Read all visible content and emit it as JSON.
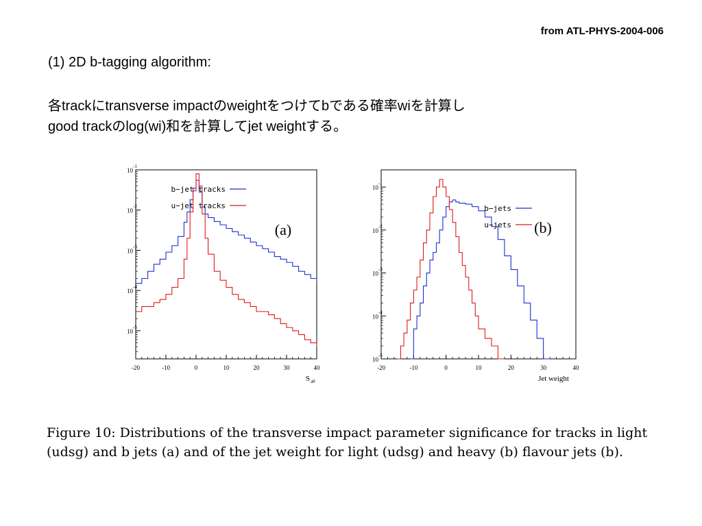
{
  "slide": {
    "source": "from ATL-PHYS-2004-006",
    "heading": "(1) 2D b-tagging algorithm:",
    "body_line1": "各trackにtransverse impactのweightをつけてbである確率wiを計算し",
    "body_line2": "good trackのlog(wi)和を計算してjet weightする。",
    "caption_line1": "Figure 10: Distributions of the transverse impact parameter significance for tracks in light",
    "caption_line2": "(udsg) and b jets (a) and of the jet weight for light (udsg) and heavy (b) flavour jets (b)."
  },
  "colors": {
    "b": "#1a2fd0",
    "u": "#e01818",
    "axis": "#000000"
  },
  "chart_data": [
    {
      "type": "line",
      "panel_label": "(a)",
      "xlabel": "S",
      "xlabel_sub": "a0",
      "ylabel": "",
      "xlim": [
        -20,
        40
      ],
      "ylim_log10": [
        -5.7,
        -1
      ],
      "xticks": [
        -20,
        -10,
        0,
        10,
        20,
        30,
        40
      ],
      "yticks_log10": [
        -1,
        -2,
        -3,
        -4,
        -5
      ],
      "legend": "top-right",
      "series": [
        {
          "name": "b−jet tracks",
          "color_key": "b",
          "x": [
            -20,
            -18,
            -16,
            -14,
            -12,
            -10,
            -8,
            -6,
            -4,
            -3,
            -2,
            -1,
            0,
            1,
            2,
            3,
            4,
            6,
            8,
            10,
            12,
            14,
            16,
            18,
            20,
            22,
            24,
            26,
            28,
            30,
            32,
            34,
            36,
            38,
            40
          ],
          "y": [
            0.00015,
            0.0002,
            0.0003,
            0.00045,
            0.0006,
            0.0009,
            0.0013,
            0.0022,
            0.005,
            0.009,
            0.018,
            0.035,
            0.055,
            0.028,
            0.012,
            0.008,
            0.0065,
            0.0052,
            0.0043,
            0.0035,
            0.0029,
            0.0024,
            0.002,
            0.0016,
            0.0013,
            0.0011,
            0.0009,
            0.0007,
            0.0006,
            0.0005,
            0.0004,
            0.0003,
            0.00025,
            0.0002,
            0.00017
          ]
        },
        {
          "name": "u−jet tracks",
          "color_key": "u",
          "x": [
            -20,
            -18,
            -16,
            -14,
            -12,
            -10,
            -8,
            -6,
            -4,
            -3,
            -2,
            -1,
            0,
            1,
            2,
            3,
            4,
            6,
            8,
            10,
            12,
            14,
            16,
            18,
            20,
            22,
            24,
            26,
            28,
            30,
            32,
            34,
            36,
            38,
            40
          ],
          "y": [
            3e-05,
            4e-05,
            4e-05,
            5e-05,
            6e-05,
            8e-05,
            0.00012,
            0.0002,
            0.0006,
            0.002,
            0.009,
            0.03,
            0.08,
            0.04,
            0.008,
            0.002,
            0.0008,
            0.0003,
            0.00018,
            0.00012,
            8e-05,
            6e-05,
            5e-05,
            4e-05,
            3e-05,
            3e-05,
            2.5e-05,
            2e-05,
            1.5e-05,
            1.2e-05,
            1e-05,
            8e-06,
            6e-06,
            5e-06,
            4e-06
          ]
        }
      ]
    },
    {
      "type": "line",
      "panel_label": "(b)",
      "xlabel": "Jet weight",
      "ylabel": "",
      "xlim": [
        -20,
        40
      ],
      "ylim_log10": [
        -5,
        -0.6
      ],
      "xticks": [
        -20,
        -10,
        0,
        10,
        20,
        30,
        40
      ],
      "yticks_log10": [
        -1,
        -2,
        -3,
        -4,
        -5
      ],
      "legend": "top-right",
      "series": [
        {
          "name": "b−jets",
          "color_key": "b",
          "x": [
            -11,
            -10,
            -9,
            -8,
            -7,
            -6,
            -5,
            -4,
            -3,
            -2,
            -1,
            0,
            1,
            2,
            3,
            4,
            6,
            8,
            10,
            12,
            14,
            16,
            18,
            20,
            22,
            24,
            26,
            28,
            30
          ],
          "y": [
            1e-05,
            5e-05,
            0.0001,
            0.0002,
            0.0005,
            0.001,
            0.002,
            0.003,
            0.005,
            0.01,
            0.02,
            0.035,
            0.045,
            0.05,
            0.045,
            0.042,
            0.04,
            0.035,
            0.028,
            0.02,
            0.012,
            0.006,
            0.0025,
            0.0012,
            0.0005,
            0.0002,
            8e-05,
            3e-05,
            1e-05
          ]
        },
        {
          "name": "u−jets",
          "color_key": "u",
          "x": [
            -15,
            -14,
            -13,
            -12,
            -11,
            -10,
            -9,
            -8,
            -7,
            -6,
            -5,
            -4,
            -3,
            -2,
            -1,
            0,
            1,
            2,
            3,
            4,
            5,
            6,
            7,
            8,
            9,
            10,
            12,
            14,
            16
          ],
          "y": [
            1e-05,
            2e-05,
            4e-05,
            8e-05,
            0.0002,
            0.0004,
            0.0008,
            0.002,
            0.005,
            0.01,
            0.025,
            0.06,
            0.1,
            0.15,
            0.1,
            0.06,
            0.03,
            0.015,
            0.007,
            0.003,
            0.0015,
            0.0008,
            0.0004,
            0.0002,
            0.0001,
            5e-05,
            3e-05,
            2e-05,
            1e-05
          ]
        }
      ]
    }
  ]
}
